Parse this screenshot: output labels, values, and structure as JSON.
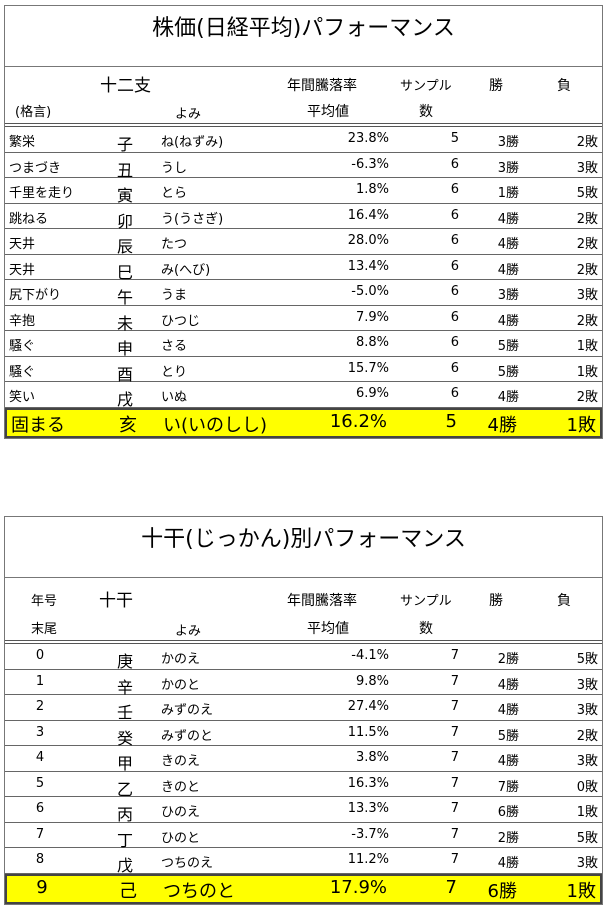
{
  "zodiac": {
    "title": "株価(日経平均)パフォーマンス",
    "headers": {
      "group": "十二支",
      "proverb": "(格言)",
      "yomi": "よみ",
      "rate1": "年間騰落率",
      "rate2": "平均値",
      "sample1": "サンプル",
      "sample2": "数",
      "win": "勝",
      "lose": "負"
    },
    "rows": [
      {
        "proverb": "繁栄",
        "sign": "子",
        "yomi": "ね(ねずみ)",
        "rate": "23.8%",
        "n": "5",
        "win": "3勝",
        "lose": "2敗"
      },
      {
        "proverb": "つまづき",
        "sign": "丑",
        "yomi": "うし",
        "rate": "-6.3%",
        "n": "6",
        "win": "3勝",
        "lose": "3敗"
      },
      {
        "proverb": "千里を走り",
        "sign": "寅",
        "yomi": "とら",
        "rate": "1.8%",
        "n": "6",
        "win": "1勝",
        "lose": "5敗"
      },
      {
        "proverb": "跳ねる",
        "sign": "卯",
        "yomi": "う(うさぎ)",
        "rate": "16.4%",
        "n": "6",
        "win": "4勝",
        "lose": "2敗"
      },
      {
        "proverb": "天井",
        "sign": "辰",
        "yomi": "たつ",
        "rate": "28.0%",
        "n": "6",
        "win": "4勝",
        "lose": "2敗"
      },
      {
        "proverb": "天井",
        "sign": "巳",
        "yomi": "み(へび)",
        "rate": "13.4%",
        "n": "6",
        "win": "4勝",
        "lose": "2敗"
      },
      {
        "proverb": "尻下がり",
        "sign": "午",
        "yomi": "うま",
        "rate": "-5.0%",
        "n": "6",
        "win": "3勝",
        "lose": "3敗"
      },
      {
        "proverb": "辛抱",
        "sign": "未",
        "yomi": "ひつじ",
        "rate": "7.9%",
        "n": "6",
        "win": "4勝",
        "lose": "2敗"
      },
      {
        "proverb": "騒ぐ",
        "sign": "申",
        "yomi": "さる",
        "rate": "8.8%",
        "n": "6",
        "win": "5勝",
        "lose": "1敗"
      },
      {
        "proverb": "騒ぐ",
        "sign": "酉",
        "yomi": "とり",
        "rate": "15.7%",
        "n": "6",
        "win": "5勝",
        "lose": "1敗"
      },
      {
        "proverb": "笑い",
        "sign": "戌",
        "yomi": "いぬ",
        "rate": "6.9%",
        "n": "6",
        "win": "4勝",
        "lose": "2敗"
      },
      {
        "proverb": "固まる",
        "sign": "亥",
        "yomi": "い(いのしし)",
        "rate": "16.2%",
        "n": "5",
        "win": "4勝",
        "lose": "1敗",
        "highlight": true
      }
    ]
  },
  "stems": {
    "title": "十干(じっかん)別パフォーマンス",
    "headers": {
      "group": "十干",
      "year1": "年号",
      "year2": "末尾",
      "yomi": "よみ",
      "rate1": "年間騰落率",
      "rate2": "平均値",
      "sample1": "サンプル",
      "sample2": "数",
      "win": "勝",
      "lose": "負"
    },
    "rows": [
      {
        "digit": "0",
        "sign": "庚",
        "yomi": "かのえ",
        "rate": "-4.1%",
        "n": "7",
        "win": "2勝",
        "lose": "5敗"
      },
      {
        "digit": "1",
        "sign": "辛",
        "yomi": "かのと",
        "rate": "9.8%",
        "n": "7",
        "win": "4勝",
        "lose": "3敗"
      },
      {
        "digit": "2",
        "sign": "壬",
        "yomi": "みずのえ",
        "rate": "27.4%",
        "n": "7",
        "win": "4勝",
        "lose": "3敗"
      },
      {
        "digit": "3",
        "sign": "癸",
        "yomi": "みずのと",
        "rate": "11.5%",
        "n": "7",
        "win": "5勝",
        "lose": "2敗"
      },
      {
        "digit": "4",
        "sign": "甲",
        "yomi": "きのえ",
        "rate": "3.8%",
        "n": "7",
        "win": "4勝",
        "lose": "3敗"
      },
      {
        "digit": "5",
        "sign": "乙",
        "yomi": "きのと",
        "rate": "16.3%",
        "n": "7",
        "win": "7勝",
        "lose": "0敗"
      },
      {
        "digit": "6",
        "sign": "丙",
        "yomi": "ひのえ",
        "rate": "13.3%",
        "n": "7",
        "win": "6勝",
        "lose": "1敗"
      },
      {
        "digit": "7",
        "sign": "丁",
        "yomi": "ひのと",
        "rate": "-3.7%",
        "n": "7",
        "win": "2勝",
        "lose": "5敗"
      },
      {
        "digit": "8",
        "sign": "戊",
        "yomi": "つちのえ",
        "rate": "11.2%",
        "n": "7",
        "win": "4勝",
        "lose": "3敗"
      },
      {
        "digit": "9",
        "sign": "己",
        "yomi": "つちのと",
        "rate": "17.9%",
        "n": "7",
        "win": "6勝",
        "lose": "1敗",
        "highlight": true
      }
    ]
  },
  "colors": {
    "highlight": "#ffff00"
  }
}
